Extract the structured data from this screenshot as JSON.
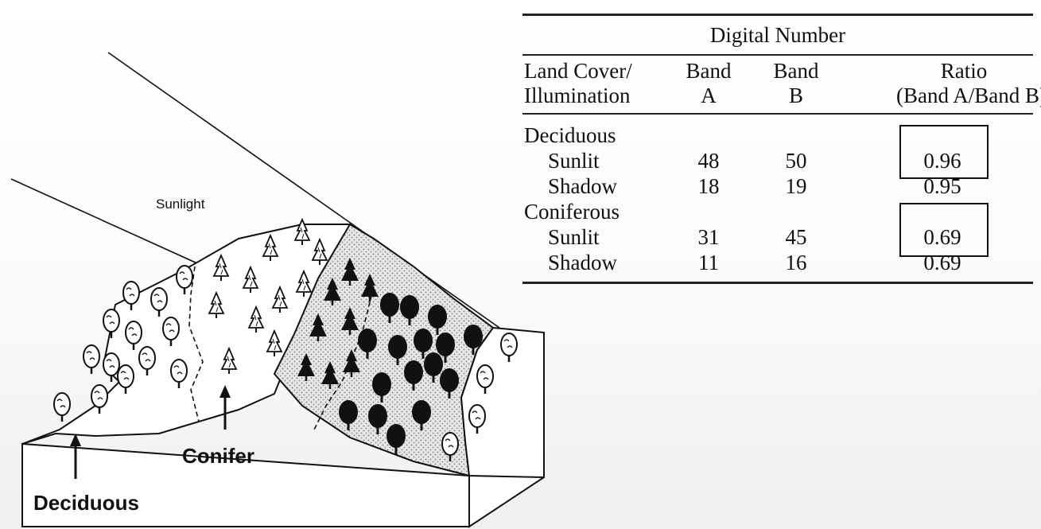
{
  "diagram": {
    "sunlight_label": "Sunlight",
    "conifer_label": "Conifer",
    "deciduous_label": "Deciduous"
  },
  "table": {
    "caption": "Digital Number",
    "headers": {
      "col1_line1": "Land Cover/",
      "col1_line2": "Illumination",
      "col2_line1": "Band",
      "col2_line2": "A",
      "col3_line1": "Band",
      "col3_line2": "B",
      "col4_line1": "Ratio",
      "col4_line2": "(Band A/Band B)"
    },
    "groups": [
      {
        "name": "Deciduous",
        "rows": [
          {
            "illumination": "Sunlit",
            "band_a": "48",
            "band_b": "50",
            "ratio": "0.96"
          },
          {
            "illumination": "Shadow",
            "band_a": "18",
            "band_b": "19",
            "ratio": "0.95"
          }
        ]
      },
      {
        "name": "Coniferous",
        "rows": [
          {
            "illumination": "Sunlit",
            "band_a": "31",
            "band_b": "45",
            "ratio": "0.69"
          },
          {
            "illumination": "Shadow",
            "band_a": "11",
            "band_b": "16",
            "ratio": "0.69"
          }
        ]
      }
    ]
  }
}
